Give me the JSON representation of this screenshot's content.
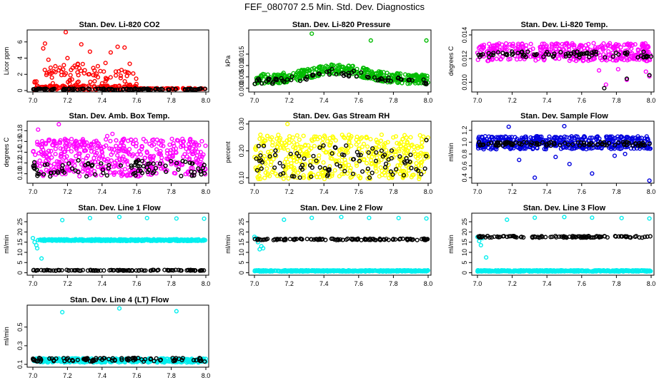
{
  "page": {
    "title": "FEF_080707  2.5 Min. Std. Dev. Diagnostics"
  },
  "chart_data": [
    {
      "type": "scatter",
      "title": "Stan. Dev. Li-820 CO2",
      "ylabel": "Licor ppm",
      "xlim": [
        7.0,
        8.0
      ],
      "ylim": [
        0,
        7.3
      ],
      "xticks": [
        "7.0",
        "7.2",
        "7.4",
        "7.6",
        "7.8",
        "8.0"
      ],
      "yticks": [
        "0",
        "2",
        "4",
        "6"
      ],
      "ytick_values": [
        0,
        2,
        4,
        6
      ],
      "series": [
        {
          "color": "#ff0000",
          "mode": "spikes",
          "points": [
            [
              7.06,
              5.2
            ],
            [
              7.07,
              5.8
            ],
            [
              7.09,
              3.8
            ],
            [
              7.1,
              2.1
            ],
            [
              7.11,
              1.6
            ],
            [
              7.13,
              3.0
            ],
            [
              7.15,
              2.5
            ],
            [
              7.19,
              7.2
            ],
            [
              7.2,
              4.0
            ],
            [
              7.23,
              2.8
            ],
            [
              7.26,
              3.3
            ],
            [
              7.28,
              5.7
            ],
            [
              7.3,
              2.5
            ],
            [
              7.33,
              4.8
            ],
            [
              7.35,
              1.9
            ],
            [
              7.39,
              2.4
            ],
            [
              7.42,
              3.4
            ],
            [
              7.45,
              4.7
            ],
            [
              7.49,
              5.4
            ],
            [
              7.53,
              5.3
            ],
            [
              7.56,
              3.3
            ],
            [
              7.58,
              2.1
            ]
          ],
          "base": [
            0.1,
            0.6
          ],
          "band": [
            7.0,
            7.6
          ],
          "density": 220,
          "tail_to": 8.0
        },
        {
          "color": "#000000",
          "mode": "band",
          "range": [
            0.05,
            0.25
          ],
          "count": 120
        }
      ]
    },
    {
      "type": "scatter",
      "title": "Stan. Dev. Li-820 Pressure",
      "ylabel": "kPa",
      "xlim": [
        7.0,
        8.0
      ],
      "ylim": [
        -0.001,
        0.025
      ],
      "xticks": [
        "7.0",
        "7.2",
        "7.4",
        "7.6",
        "7.8",
        "8.0"
      ],
      "yticks": [
        "0.000",
        "0.005",
        "0.010",
        "0.015"
      ],
      "ytick_values": [
        0,
        0.005,
        0.01,
        0.015
      ],
      "series": [
        {
          "color": "#00bb00",
          "mode": "hump",
          "center": 0.004,
          "peak": 0.0085,
          "spread": 0.0022,
          "count": 380,
          "outliers": [
            [
              7.33,
              0.024
            ],
            [
              7.67,
              0.021
            ],
            [
              7.99,
              0.021
            ]
          ]
        },
        {
          "color": "#000000",
          "mode": "hump",
          "center": 0.003,
          "peak": 0.007,
          "spread": 0.0015,
          "count": 70
        }
      ]
    },
    {
      "type": "scatter",
      "title": "Stan. Dev. Li-820 Temp.",
      "ylabel": "degrees C",
      "xlim": [
        7.0,
        8.0
      ],
      "ylim": [
        0.0093,
        0.0143
      ],
      "xticks": [
        "7.0",
        "7.2",
        "7.4",
        "7.6",
        "7.8",
        "8.0"
      ],
      "yticks": [
        "0.010",
        "0.012",
        "0.014"
      ],
      "ytick_values": [
        0.01,
        0.012,
        0.014
      ],
      "series": [
        {
          "color": "#ff00ff",
          "mode": "band",
          "range": [
            0.0118,
            0.0133
          ],
          "count": 360,
          "outliers": [
            [
              7.74,
              0.0098
            ],
            [
              7.7,
              0.011
            ],
            [
              7.86,
              0.0102
            ],
            [
              7.97,
              0.0109
            ],
            [
              7.81,
              0.0111
            ],
            [
              7.99,
              0.0105
            ]
          ]
        },
        {
          "color": "#000000",
          "mode": "band",
          "range": [
            0.0121,
            0.0126
          ],
          "count": 80,
          "outliers": [
            [
              7.73,
              0.0095
            ],
            [
              7.99,
              0.0106
            ],
            [
              7.86,
              0.0103
            ]
          ]
        }
      ]
    },
    {
      "type": "scatter",
      "title": "Stan. Dev. Amb. Box Temp.",
      "ylabel": "degrees C",
      "xlim": [
        7.0,
        8.0
      ],
      "ylim": [
        0.085,
        0.195
      ],
      "xticks": [
        "7.0",
        "7.2",
        "7.4",
        "7.6",
        "7.8",
        "8.0"
      ],
      "yticks": [
        "0.10",
        "0.12",
        "0.14",
        "0.16",
        "0.18"
      ],
      "ytick_values": [
        0.1,
        0.12,
        0.14,
        0.16,
        0.18
      ],
      "series": [
        {
          "color": "#ff00ff",
          "mode": "band",
          "range": [
            0.095,
            0.165
          ],
          "count": 480,
          "outliers": [
            [
              7.15,
              0.192
            ],
            [
              7.03,
              0.182
            ],
            [
              7.46,
              0.174
            ],
            [
              7.43,
              0.17
            ]
          ]
        },
        {
          "color": "#000000",
          "mode": "band",
          "range": [
            0.095,
            0.125
          ],
          "count": 90
        }
      ]
    },
    {
      "type": "scatter",
      "title": "Stan. Dev. Gas Stream RH",
      "ylabel": "percent",
      "xlim": [
        7.0,
        8.0
      ],
      "ylim": [
        0.085,
        0.305
      ],
      "xticks": [
        "7.0",
        "7.2",
        "7.4",
        "7.6",
        "7.8",
        "8.0"
      ],
      "yticks": [
        "0.10",
        "0.20",
        "0.30"
      ],
      "ytick_values": [
        0.1,
        0.2,
        0.3
      ],
      "series": [
        {
          "color": "#ffff00",
          "mode": "band",
          "range": [
            0.095,
            0.26
          ],
          "count": 460,
          "outliers": [
            [
              7.19,
              0.3
            ]
          ]
        },
        {
          "color": "#000000",
          "mode": "band",
          "range": [
            0.1,
            0.22
          ],
          "count": 90,
          "outliers": [
            [
              7.99,
              0.24
            ]
          ]
        }
      ]
    },
    {
      "type": "scatter",
      "title": "Stan. Dev. Sample Flow",
      "ylabel": "ml/min",
      "xlim": [
        7.0,
        8.0
      ],
      "ylim": [
        0.33,
        1.33
      ],
      "xticks": [
        "7.0",
        "7.2",
        "7.4",
        "7.6",
        "7.8",
        "8.0"
      ],
      "yticks": [
        "0.4",
        "0.6",
        "0.8",
        "1.0",
        "1.2"
      ],
      "ytick_values": [
        0.4,
        0.6,
        0.8,
        1.0,
        1.2
      ],
      "series": [
        {
          "color": "#0000dd",
          "mode": "band",
          "range": [
            0.88,
            1.1
          ],
          "count": 430,
          "outliers": [
            [
              7.18,
              1.26
            ],
            [
              7.5,
              1.27
            ],
            [
              7.33,
              0.4
            ],
            [
              7.66,
              0.47
            ],
            [
              7.99,
              0.35
            ],
            [
              7.45,
              0.75
            ],
            [
              7.53,
              0.63
            ],
            [
              7.24,
              0.7
            ],
            [
              7.85,
              0.8
            ],
            [
              7.79,
              0.77
            ]
          ]
        },
        {
          "color": "#000000",
          "mode": "band",
          "range": [
            0.94,
            1.0
          ],
          "count": 90
        }
      ]
    },
    {
      "type": "scatter",
      "title": "Stan. Dev. Line 1 Flow",
      "ylabel": "ml/min",
      "xlim": [
        7.0,
        8.0
      ],
      "ylim": [
        -0.5,
        28.5
      ],
      "xticks": [
        "7.0",
        "7.2",
        "7.4",
        "7.6",
        "7.8",
        "8.0"
      ],
      "yticks": [
        "0",
        "5",
        "10",
        "15",
        "20",
        "25"
      ],
      "ytick_values": [
        0,
        5,
        10,
        15,
        20,
        25
      ],
      "series": [
        {
          "color": "#00eeee",
          "mode": "band",
          "range": [
            15.6,
            16.4
          ],
          "count": 420,
          "start": 7.04,
          "outliers": [
            [
              7.0,
              17.0
            ],
            [
              7.01,
              15.0
            ],
            [
              7.02,
              13.5
            ],
            [
              7.025,
              12.0
            ],
            [
              7.03,
              16.0
            ],
            [
              7.05,
              7.0
            ],
            [
              7.17,
              25.8
            ],
            [
              7.33,
              26.8
            ],
            [
              7.5,
              27.3
            ],
            [
              7.66,
              26.8
            ],
            [
              7.83,
              26.6
            ],
            [
              7.99,
              26.5
            ]
          ]
        },
        {
          "color": "#000000",
          "mode": "band",
          "range": [
            1.0,
            1.4
          ],
          "count": 110
        }
      ]
    },
    {
      "type": "scatter",
      "title": "Stan. Dev. Line 2 Flow",
      "ylabel": "ml/min",
      "xlim": [
        7.0,
        8.0
      ],
      "ylim": [
        -0.5,
        28.5
      ],
      "xticks": [
        "7.0",
        "7.2",
        "7.4",
        "7.6",
        "7.8",
        "8.0"
      ],
      "yticks": [
        "0",
        "5",
        "10",
        "15",
        "20",
        "25"
      ],
      "ytick_values": [
        0,
        5,
        10,
        15,
        20,
        25
      ],
      "series": [
        {
          "color": "#00eeee",
          "mode": "band",
          "range": [
            0.6,
            1.2
          ],
          "count": 420,
          "outliers": [
            [
              7.0,
              17.6
            ],
            [
              7.01,
              17.0
            ],
            [
              7.02,
              15.0
            ],
            [
              7.03,
              11.5
            ],
            [
              7.04,
              13.0
            ],
            [
              7.05,
              12.0
            ],
            [
              7.17,
              26.0
            ],
            [
              7.33,
              26.9
            ],
            [
              7.5,
              27.3
            ],
            [
              7.66,
              26.9
            ],
            [
              7.83,
              26.8
            ],
            [
              7.99,
              26.6
            ]
          ]
        },
        {
          "color": "#000000",
          "mode": "band",
          "range": [
            16.0,
            16.7
          ],
          "count": 110
        }
      ]
    },
    {
      "type": "scatter",
      "title": "Stan. Dev. Line 3 Flow",
      "ylabel": "ml/min",
      "xlim": [
        7.0,
        8.0
      ],
      "ylim": [
        -0.5,
        28.5
      ],
      "xticks": [
        "7.0",
        "7.2",
        "7.4",
        "7.6",
        "7.8",
        "8.0"
      ],
      "yticks": [
        "0",
        "5",
        "10",
        "15",
        "20",
        "25"
      ],
      "ytick_values": [
        0,
        5,
        10,
        15,
        20,
        25
      ],
      "series": [
        {
          "color": "#00eeee",
          "mode": "band",
          "range": [
            0.6,
            1.2
          ],
          "count": 420,
          "outliers": [
            [
              7.0,
              17.5
            ],
            [
              7.01,
              15.5
            ],
            [
              7.02,
              13.5
            ],
            [
              7.03,
              17.0
            ],
            [
              7.05,
              7.5
            ],
            [
              7.17,
              26.0
            ],
            [
              7.33,
              27.0
            ],
            [
              7.5,
              27.3
            ],
            [
              7.66,
              27.0
            ],
            [
              7.83,
              26.8
            ],
            [
              7.99,
              26.6
            ]
          ]
        },
        {
          "color": "#000000",
          "mode": "band",
          "range": [
            17.2,
            18.0
          ],
          "count": 110
        }
      ]
    },
    {
      "type": "scatter",
      "title": "Stan. Dev. Line 4 (LT) Flow",
      "ylabel": "ml/min",
      "xlim": [
        7.0,
        8.0
      ],
      "ylim": [
        0.085,
        0.72
      ],
      "xticks": [
        "7.0",
        "7.2",
        "7.4",
        "7.6",
        "7.8",
        "8.0"
      ],
      "yticks": [
        "0.1",
        "0.3",
        "0.5"
      ],
      "ytick_values": [
        0.1,
        0.3,
        0.5
      ],
      "series": [
        {
          "color": "#00eeee",
          "mode": "band",
          "range": [
            0.12,
            0.165
          ],
          "count": 420,
          "outliers": [
            [
              7.17,
              0.66
            ],
            [
              7.5,
              0.7
            ],
            [
              7.83,
              0.67
            ]
          ]
        },
        {
          "color": "#000000",
          "mode": "band",
          "range": [
            0.13,
            0.17
          ],
          "count": 90
        }
      ]
    }
  ]
}
